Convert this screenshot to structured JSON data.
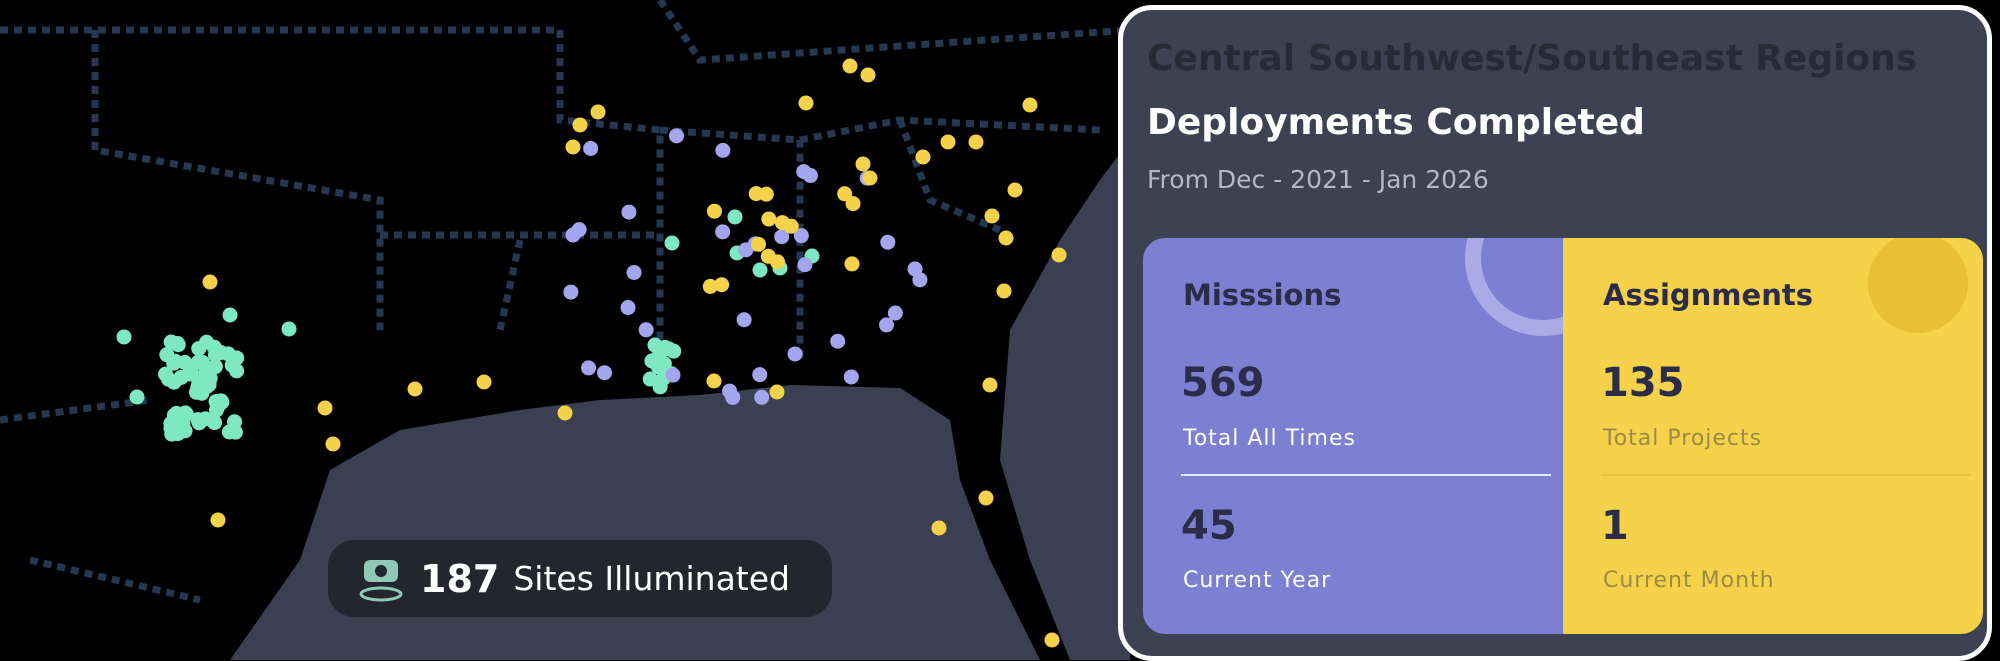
{
  "badge": {
    "count": "187",
    "label": "Sites Illuminated"
  },
  "panel": {
    "region": "Central Southwest/Southeast Regions",
    "title": "Deployments Completed",
    "period": "From Dec - 2021 - Jan 2026",
    "missions": {
      "title": "Misssions",
      "total": "569",
      "total_label": "Total All Times",
      "year": "45",
      "year_label": "Current Year"
    },
    "assignments": {
      "title": "Assignments",
      "total": "135",
      "total_label": "Total Projects",
      "month": "1",
      "month_label": "Current Month"
    }
  }
}
